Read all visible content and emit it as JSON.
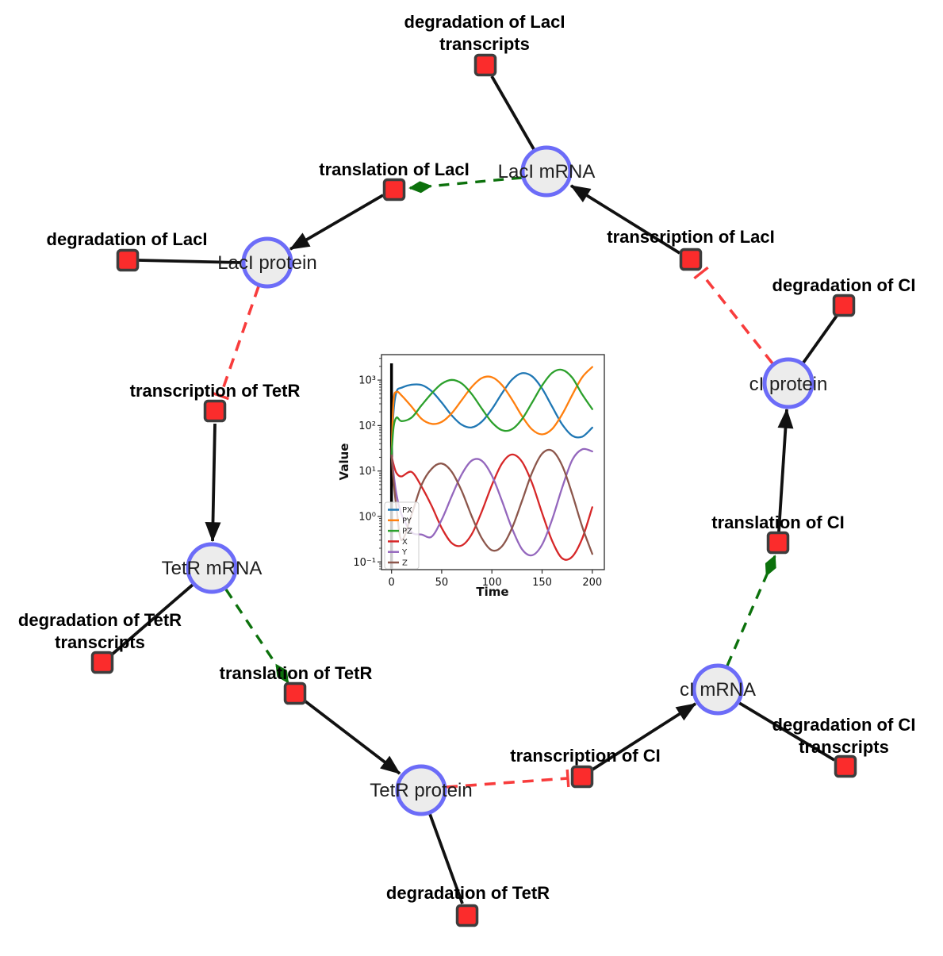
{
  "colors": {
    "background": "#ffffff",
    "species_fill": "#ececec",
    "species_border": "#6c6cf8",
    "reaction_fill": "#fb2c2c",
    "reaction_border": "#3d3d3d",
    "edge": "#111111",
    "modifier_edge": "#0c710c",
    "inhibition_edge": "#f83c3c",
    "reaction_label": "#000000",
    "species_label": "#1f1f1f"
  },
  "diagram": {
    "species": [
      {
        "id": "laci-mrna",
        "label": "LacI mRNA"
      },
      {
        "id": "laci-protein",
        "label": "LacI protein"
      },
      {
        "id": "tetr-mrna",
        "label": "TetR mRNA"
      },
      {
        "id": "tetr-protein",
        "label": "TetR protein"
      },
      {
        "id": "ci-mrna",
        "label": "cI mRNA"
      },
      {
        "id": "ci-protein",
        "label": "cI protein"
      }
    ],
    "reactions": [
      {
        "id": "degradation-laci-transcripts",
        "lines": [
          "degradation of LacI",
          "transcripts"
        ]
      },
      {
        "id": "translation-laci",
        "lines": [
          "translation of LacI"
        ]
      },
      {
        "id": "degradation-laci",
        "lines": [
          "degradation of LacI"
        ]
      },
      {
        "id": "transcription-laci",
        "lines": [
          "transcription of LacI"
        ]
      },
      {
        "id": "degradation-ci",
        "lines": [
          "degradation of CI"
        ]
      },
      {
        "id": "transcription-tetr",
        "lines": [
          "transcription of TetR"
        ]
      },
      {
        "id": "degradation-tetr-transcripts",
        "lines": [
          "degradation of TetR",
          "transcripts"
        ]
      },
      {
        "id": "translation-tetr",
        "lines": [
          "translation of TetR"
        ]
      },
      {
        "id": "degradation-tetr",
        "lines": [
          "degradation of TetR"
        ]
      },
      {
        "id": "transcription-ci",
        "lines": [
          "transcription of CI"
        ]
      },
      {
        "id": "degradation-ci-transcripts",
        "lines": [
          "degradation of CI",
          "transcripts"
        ]
      },
      {
        "id": "translation-ci",
        "lines": [
          "translation of CI"
        ]
      }
    ],
    "edges": [
      {
        "from": "LacI mRNA",
        "to": "degradation of LacI transcripts",
        "type": "reactant"
      },
      {
        "from": "LacI mRNA",
        "to": "translation of LacI",
        "type": "modifier"
      },
      {
        "from": "translation of LacI",
        "to": "LacI protein",
        "type": "product"
      },
      {
        "from": "LacI protein",
        "to": "degradation of LacI",
        "type": "reactant"
      },
      {
        "from": "LacI protein",
        "to": "transcription of TetR",
        "type": "inhibition"
      },
      {
        "from": "transcription of TetR",
        "to": "TetR mRNA",
        "type": "product"
      },
      {
        "from": "TetR mRNA",
        "to": "degradation of TetR transcripts",
        "type": "reactant"
      },
      {
        "from": "TetR mRNA",
        "to": "translation of TetR",
        "type": "modifier"
      },
      {
        "from": "translation of TetR",
        "to": "TetR protein",
        "type": "product"
      },
      {
        "from": "TetR protein",
        "to": "degradation of TetR",
        "type": "reactant"
      },
      {
        "from": "TetR protein",
        "to": "transcription of CI",
        "type": "inhibition"
      },
      {
        "from": "transcription of CI",
        "to": "cI mRNA",
        "type": "product"
      },
      {
        "from": "cI mRNA",
        "to": "degradation of CI transcripts",
        "type": "reactant"
      },
      {
        "from": "cI mRNA",
        "to": "translation of CI",
        "type": "modifier"
      },
      {
        "from": "translation of CI",
        "to": "cI protein",
        "type": "product"
      },
      {
        "from": "cI protein",
        "to": "degradation of CI",
        "type": "reactant"
      },
      {
        "from": "cI protein",
        "to": "transcription of LacI",
        "type": "inhibition"
      },
      {
        "from": "transcription of LacI",
        "to": "LacI mRNA",
        "type": "product"
      }
    ]
  },
  "chart_data": {
    "type": "line",
    "title": "",
    "xlabel": "Time",
    "ylabel": "Value",
    "yscale": "log",
    "xlim": [
      -10,
      212
    ],
    "ylog_range": [
      -1.17,
      3.56
    ],
    "xticks": [
      0,
      50,
      100,
      150,
      200
    ],
    "yticks": [
      {
        "value": 0.1,
        "label": "10⁻¹"
      },
      {
        "value": 1,
        "label": "10⁰"
      },
      {
        "value": 10,
        "label": "10¹"
      },
      {
        "value": 100,
        "label": "10²"
      },
      {
        "value": 1000,
        "label": "10³"
      }
    ],
    "vline_x": 0,
    "legend_position": "lower left",
    "x": [
      0,
      2,
      5,
      10,
      20,
      30,
      40,
      50,
      60,
      70,
      80,
      90,
      100,
      110,
      120,
      130,
      140,
      150,
      160,
      170,
      180,
      190,
      200
    ],
    "series": [
      {
        "name": "PX",
        "color": "#1f77b4",
        "values": [
          22,
          200,
          560,
          680,
          790,
          780,
          570,
          320,
          167,
          104,
          91,
          122,
          230,
          510,
          1020,
          1420,
          1210,
          650,
          260,
          106,
          60,
          57,
          90
        ]
      },
      {
        "name": "PY",
        "color": "#ff7f0e",
        "values": [
          22,
          350,
          550,
          460,
          260,
          140,
          109,
          120,
          187,
          365,
          710,
          1110,
          1160,
          780,
          375,
          161,
          82,
          64,
          84,
          177,
          470,
          1160,
          1940
        ]
      },
      {
        "name": "PZ",
        "color": "#2ca02c",
        "values": [
          22,
          90,
          150,
          125,
          150,
          280,
          510,
          830,
          1010,
          840,
          490,
          234,
          118,
          79,
          83,
          139,
          320,
          760,
          1440,
          1680,
          1130,
          480,
          230
        ]
      },
      {
        "name": "X",
        "color": "#d62728",
        "values": [
          22,
          14,
          9,
          7.6,
          9.5,
          4.5,
          1.7,
          0.56,
          0.26,
          0.23,
          0.41,
          1.3,
          4.9,
          14.6,
          23,
          16,
          5.4,
          1.19,
          0.29,
          0.12,
          0.13,
          0.33,
          1.6
        ]
      },
      {
        "name": "Y",
        "color": "#9467bd",
        "values": [
          22,
          9,
          3,
          1.1,
          0.45,
          0.4,
          0.36,
          0.85,
          2.8,
          8.5,
          17,
          16.7,
          7.9,
          2.2,
          0.55,
          0.19,
          0.14,
          0.24,
          0.86,
          4.3,
          17.4,
          30,
          27
        ]
      },
      {
        "name": "Z",
        "color": "#8c564b",
        "values": [
          22,
          6,
          1.5,
          0.3,
          1.1,
          5,
          11.2,
          14.6,
          9.6,
          3.6,
          1.0,
          0.33,
          0.18,
          0.22,
          0.55,
          2.2,
          9.2,
          24,
          28,
          13.2,
          3.1,
          0.59,
          0.15
        ]
      }
    ]
  }
}
